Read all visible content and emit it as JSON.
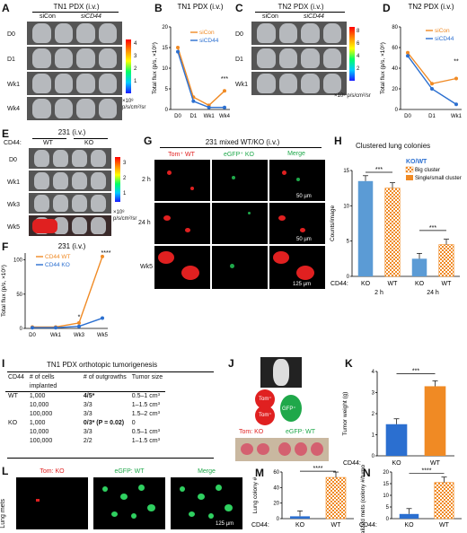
{
  "panels": {
    "A": {
      "letter": "A",
      "title": "TN1 PDX (i.v.)",
      "groups": [
        "siCon",
        "siCD44"
      ],
      "rows": [
        "D0",
        "D1",
        "Wk1",
        "Wk4"
      ],
      "scale": [
        "4",
        "3",
        "2",
        "1"
      ],
      "scale_unit": "×10⁸ p/s/cm²/sr"
    },
    "B": {
      "letter": "B",
      "title": "TN1 PDX (i.v.)",
      "ylabel": "Total flux (p/s, ×10⁹)",
      "yticks": [
        "0",
        "5",
        "10",
        "15",
        "20"
      ],
      "xticks": [
        "D0",
        "D1",
        "Wk1",
        "Wk4"
      ],
      "legend": [
        "siCon",
        "siCD44"
      ],
      "sig": "***"
    },
    "C": {
      "letter": "C",
      "title": "TN2 PDX (i.v.)",
      "groups": [
        "siCon",
        "siCD44"
      ],
      "rows": [
        "D0",
        "D1",
        "Wk1"
      ],
      "scale": [
        "8",
        "6",
        "4",
        "2"
      ],
      "scale_unit": "×10⁸ p/s/cm²/sr"
    },
    "D": {
      "letter": "D",
      "title": "TN2 PDX (i.v.)",
      "ylabel": "Total flux (p/s, ×10⁹)",
      "yticks": [
        "0",
        "20",
        "40",
        "60",
        "80"
      ],
      "xticks": [
        "D0",
        "D1",
        "Wk1"
      ],
      "legend": [
        "siCon",
        "siCD44"
      ],
      "sig": "**"
    },
    "E": {
      "letter": "E",
      "title": "231 (i.v.)",
      "cd44": "CD44:",
      "groups": [
        "WT",
        "KO"
      ],
      "rows": [
        "D0",
        "Wk1",
        "Wk3",
        "Wk5"
      ],
      "scale": [
        "3",
        "2",
        "1"
      ],
      "scale_unit": "×10⁸ p/s/cm²/sr"
    },
    "F": {
      "letter": "F",
      "title": "231 (i.v.)",
      "ylabel": "Total flux (p/s, ×10⁹)",
      "yticks": [
        "0",
        "50",
        "100"
      ],
      "xticks": [
        "D0",
        "Wk1",
        "Wk3",
        "Wk5"
      ],
      "legend": [
        "CD44 WT",
        "CD44 KO"
      ],
      "sig": "****",
      "sig2": "*"
    },
    "G": {
      "letter": "G",
      "title": "231 mixed WT/KO (i.v.)",
      "cols": [
        "Tom⁺ WT",
        "eGFP⁺ KO",
        "Merge"
      ],
      "rows": [
        "2 h",
        "24 h",
        "Wk5"
      ],
      "scalebars": [
        "50 µm",
        "50 µm",
        "125 µm"
      ]
    },
    "H": {
      "letter": "H",
      "title": "Clustered lung colonies",
      "ylabel": "Counts/image",
      "yticks": [
        "0",
        "5",
        "10",
        "15"
      ],
      "legend_title": "KO/WT",
      "legend": [
        "Big cluster",
        "Single/small cluster"
      ],
      "xgroups": [
        "KO",
        "WT",
        "KO",
        "WT"
      ],
      "times": [
        "2 h",
        "24 h"
      ],
      "cd44": "CD44:",
      "sig": [
        "***",
        "***"
      ]
    },
    "I": {
      "letter": "I",
      "title": "TN1 PDX orthotopic tumorigenesis",
      "headers": [
        "CD44",
        "# of cells implanted",
        "# of outgrowths",
        "Tumor size"
      ],
      "rows": [
        [
          "WT",
          "1,000",
          "4/5*",
          "0.5–1 cm³"
        ],
        [
          "",
          "10,000",
          "3/3",
          "1–1.5 cm³"
        ],
        [
          "",
          "100,000",
          "3/3",
          "1.5–2 cm³"
        ],
        [
          "KO",
          "1,000",
          "0/3* (P = 0.02)",
          "0"
        ],
        [
          "",
          "10,000",
          "3/3",
          "0.5–1 cm³"
        ],
        [
          "",
          "100,000",
          "2/2",
          "1–1.5 cm³"
        ]
      ]
    },
    "J": {
      "letter": "J",
      "labels": [
        "Tom⁺",
        "Tom⁺",
        "GFP⁺"
      ],
      "caption_a": "Tom: KO",
      "caption_b": "eGFP: WT"
    },
    "K": {
      "letter": "K",
      "ylabel": "Tumor weight (g)",
      "yticks": [
        "0",
        "1",
        "2",
        "3",
        "4"
      ],
      "xticks": [
        "KO",
        "WT"
      ],
      "cd44": "CD44:",
      "sig": "***"
    },
    "L": {
      "letter": "L",
      "side": "Lung mets",
      "cols": [
        "Tom: KO",
        "eGFP: WT",
        "Merge"
      ],
      "scalebar": "125 µm"
    },
    "M": {
      "letter": "M",
      "ylabel": "Lung colony #",
      "yticks": [
        "0",
        "20",
        "40",
        "60"
      ],
      "xticks": [
        "KO",
        "WT"
      ],
      "cd44": "CD44:",
      "sig": "****"
    },
    "N": {
      "letter": "N",
      "ylabel": "Normalized mets (colony #/tumor weight)",
      "yticks": [
        "0",
        "5",
        "10",
        "15",
        "20"
      ],
      "xticks": [
        "KO",
        "WT"
      ],
      "cd44": "CD44:",
      "sig": "****"
    }
  },
  "chart_data": [
    {
      "panel": "B",
      "type": "line",
      "x": [
        "D0",
        "D1",
        "Wk1",
        "Wk4"
      ],
      "ylim": [
        0,
        20
      ],
      "series": [
        {
          "name": "siCon",
          "color": "#f08a24",
          "values": [
            15,
            3,
            1,
            4.5
          ]
        },
        {
          "name": "siCD44",
          "color": "#2b6fd0",
          "values": [
            14,
            2,
            0.5,
            0.5
          ]
        }
      ]
    },
    {
      "panel": "D",
      "type": "line",
      "x": [
        "D0",
        "D1",
        "Wk1"
      ],
      "ylim": [
        0,
        80
      ],
      "series": [
        {
          "name": "siCon",
          "color": "#f08a24",
          "values": [
            55,
            25,
            30
          ]
        },
        {
          "name": "siCD44",
          "color": "#2b6fd0",
          "values": [
            52,
            20,
            5
          ]
        }
      ]
    },
    {
      "panel": "F",
      "type": "line",
      "x": [
        "D0",
        "Wk1",
        "Wk3",
        "Wk5"
      ],
      "ylim": [
        0,
        110
      ],
      "series": [
        {
          "name": "CD44 WT",
          "color": "#f08a24",
          "values": [
            2,
            2,
            8,
            105
          ]
        },
        {
          "name": "CD44 KO",
          "color": "#2b6fd0",
          "values": [
            1,
            1,
            3,
            15
          ]
        }
      ]
    },
    {
      "panel": "H",
      "type": "bar",
      "categories": [
        "KO 2 h",
        "WT 2 h",
        "KO 24 h",
        "WT 24 h"
      ],
      "ylim": [
        0,
        15
      ],
      "values": [
        13.5,
        12.5,
        2.5,
        4.5
      ]
    },
    {
      "panel": "K",
      "type": "bar",
      "categories": [
        "KO",
        "WT"
      ],
      "ylim": [
        0,
        4
      ],
      "values": [
        1.5,
        3.3
      ]
    },
    {
      "panel": "M",
      "type": "bar",
      "categories": [
        "KO",
        "WT"
      ],
      "ylim": [
        0,
        60
      ],
      "values": [
        3,
        53
      ]
    },
    {
      "panel": "N",
      "type": "bar",
      "categories": [
        "KO",
        "WT"
      ],
      "ylim": [
        0,
        20
      ],
      "values": [
        2,
        15.5
      ]
    }
  ],
  "colors": {
    "orange": "#f08a24",
    "blue": "#2b6fd0",
    "red": "#e02020",
    "green": "#1fa84a"
  }
}
